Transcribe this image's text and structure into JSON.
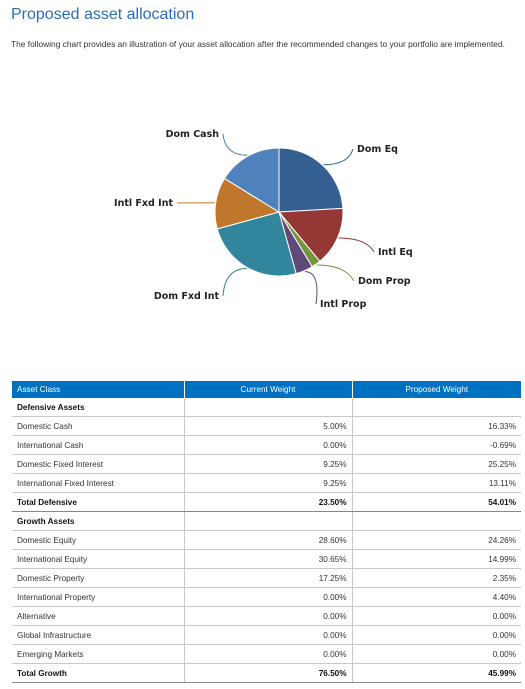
{
  "page": {
    "title": "Proposed asset allocation",
    "intro": "The following chart provides an illustration of your asset allocation after the recommended changes to your portfolio are implemented."
  },
  "chart_data": {
    "type": "pie",
    "labels": [
      "Dom Eq",
      "Intl Eq",
      "Dom Prop",
      "Intl Prop",
      "Dom Fxd Int",
      "Intl Fxd Int",
      "Dom Cash"
    ],
    "values": [
      24.26,
      14.99,
      2.35,
      4.4,
      25.25,
      13.11,
      16.33
    ],
    "colors": [
      "#365f91",
      "#953735",
      "#77933c",
      "#5f497a",
      "#31859c",
      "#c0772c",
      "#4f81bd"
    ]
  },
  "table": {
    "headers": [
      "Asset Class",
      "Current Weight",
      "Proposed Weight"
    ],
    "rows": [
      {
        "kind": "group",
        "cells": [
          "Defensive Assets",
          "",
          ""
        ]
      },
      {
        "kind": "row",
        "cells": [
          "Domestic Cash",
          "5.00%",
          "16.33%"
        ]
      },
      {
        "kind": "row",
        "cells": [
          "International Cash",
          "0.00%",
          "-0.69%"
        ]
      },
      {
        "kind": "row",
        "cells": [
          "Domestic Fixed Interest",
          "9.25%",
          "25.25%"
        ]
      },
      {
        "kind": "row",
        "cells": [
          "International Fixed Interest",
          "9.25%",
          "13.11%"
        ]
      },
      {
        "kind": "total",
        "cells": [
          "Total Defensive",
          "23.50%",
          "54.01%"
        ]
      },
      {
        "kind": "group",
        "cells": [
          "Growth Assets",
          "",
          ""
        ]
      },
      {
        "kind": "row",
        "cells": [
          "Domestic Equity",
          "28.60%",
          "24.26%"
        ]
      },
      {
        "kind": "row",
        "cells": [
          "International Equity",
          "30.65%",
          "14.99%"
        ]
      },
      {
        "kind": "row",
        "cells": [
          "Domestic Property",
          "17.25%",
          "2.35%"
        ]
      },
      {
        "kind": "row",
        "cells": [
          "International Property",
          "0.00%",
          "4.40%"
        ]
      },
      {
        "kind": "row",
        "cells": [
          "Alternative",
          "0.00%",
          "0.00%"
        ]
      },
      {
        "kind": "row",
        "cells": [
          "Global Infrastructure",
          "0.00%",
          "0.00%"
        ]
      },
      {
        "kind": "row",
        "cells": [
          "Emerging Markets",
          "0.00%",
          "0.00%"
        ]
      },
      {
        "kind": "total",
        "cells": [
          "Total Growth",
          "76.50%",
          "45.99%"
        ]
      }
    ]
  }
}
